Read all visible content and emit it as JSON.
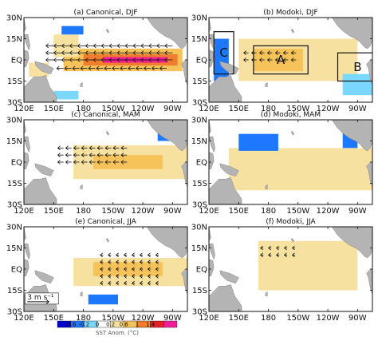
{
  "chart_data": {
    "type": "heatmap",
    "x_ticks": [
      "120E",
      "150E",
      "180",
      "150W",
      "120W",
      "90W"
    ],
    "y_ticks": [
      "30N",
      "15N",
      "EQ",
      "15S",
      "30S"
    ],
    "panels": [
      {
        "title": "(a) Canonical, DJF",
        "sst_patches": [
          {
            "lon": [
              160,
              280
            ],
            "lat": [
              -8,
              8
            ],
            "anom": 0.6
          },
          {
            "lon": [
              180,
              275
            ],
            "lat": [
              -4,
              4
            ],
            "anom": 1.0
          },
          {
            "lon": [
              200,
              265
            ],
            "lat": [
              -2,
              2
            ],
            "anom": 1.4
          },
          {
            "lon": [
              150,
              175
            ],
            "lat": [
              2,
              18
            ],
            "anom": 0.4
          },
          {
            "lon": [
              125,
              145
            ],
            "lat": [
              -12,
              -2
            ],
            "anom": 0.2
          },
          {
            "lon": [
              158,
              180
            ],
            "lat": [
              18,
              24
            ],
            "anom": -0.6
          },
          {
            "lon": [
              265,
              280
            ],
            "lat": [
              18,
              24
            ],
            "anom": -0.6
          },
          {
            "lon": [
              150,
              175
            ],
            "lat": [
              -28,
              -22
            ],
            "anom": -0.2
          }
        ],
        "winds": [
          {
            "lon": [
              150,
              270
            ],
            "lat": [
              0,
              10
            ],
            "u": 4.0,
            "v": 0.0
          },
          {
            "lon": [
              160,
              270
            ],
            "lat": [
              -6,
              -6
            ],
            "u": 3.5,
            "v": 0.0
          }
        ]
      },
      {
        "title": "(b) Modoki, DJF",
        "sst_patches": [
          {
            "lon": [
              150,
              270
            ],
            "lat": [
              -15,
              15
            ],
            "anom": 0.4
          },
          {
            "lon": [
              165,
              215
            ],
            "lat": [
              -8,
              8
            ],
            "anom": 0.6
          },
          {
            "lon": [
              125,
              140
            ],
            "lat": [
              -15,
              15
            ],
            "anom": -0.6
          },
          {
            "lon": [
              255,
              285
            ],
            "lat": [
              -25,
              -10
            ],
            "anom": -0.2
          }
        ],
        "winds": [
          {
            "lon": [
              160,
              210
            ],
            "lat": [
              0,
              5
            ],
            "u": 2.5,
            "v": 0.0
          }
        ],
        "boxes": [
          {
            "label": "A",
            "lon": [
              165,
              220
            ],
            "lat": [
              -10,
              10
            ]
          },
          {
            "label": "B",
            "lon": [
              250,
              290
            ],
            "lat": [
              -15,
              5
            ]
          },
          {
            "label": "C",
            "lon": [
              125,
              145
            ],
            "lat": [
              -10,
              20
            ]
          }
        ]
      },
      {
        "title": "(c) Canonical, MAM",
        "sst_patches": [
          {
            "lon": [
              170,
              285
            ],
            "lat": [
              -12,
              12
            ],
            "anom": 0.4
          },
          {
            "lon": [
              190,
              260
            ],
            "lat": [
              -5,
              5
            ],
            "anom": 0.6
          },
          {
            "lon": [
              255,
              270
            ],
            "lat": [
              15,
              25
            ],
            "anom": -0.6
          }
        ],
        "winds": [
          {
            "lon": [
              160,
              230
            ],
            "lat": [
              0,
              10
            ],
            "u": 3.0,
            "v": 0.0
          }
        ]
      },
      {
        "title": "(d) Modoki, MAM",
        "sst_patches": [
          {
            "lon": [
              140,
              290
            ],
            "lat": [
              -20,
              10
            ],
            "anom": 0.4
          },
          {
            "lon": [
              150,
              190
            ],
            "lat": [
              8,
              20
            ],
            "anom": -0.6
          },
          {
            "lon": [
              255,
              270
            ],
            "lat": [
              10,
              22
            ],
            "anom": -0.6
          }
        ],
        "winds": []
      },
      {
        "title": "(e) Canonical, JJA",
        "sst_patches": [
          {
            "lon": [
              170,
              285
            ],
            "lat": [
              -12,
              8
            ],
            "anom": 0.4
          },
          {
            "lon": [
              190,
              260
            ],
            "lat": [
              -5,
              5
            ],
            "anom": 0.6
          },
          {
            "lon": [
              185,
              215
            ],
            "lat": [
              -25,
              -18
            ],
            "anom": -0.6
          }
        ],
        "winds": [
          {
            "lon": [
              200,
              260
            ],
            "lat": [
              -10,
              10
            ],
            "u": 1.5,
            "v": 0.0
          }
        ]
      },
      {
        "title": "(f) Modoki, JJA",
        "sst_patches": [
          {
            "lon": [
              170,
              270
            ],
            "lat": [
              -15,
              20
            ],
            "anom": 0.2
          }
        ],
        "winds": [
          {
            "lon": [
              175,
              210
            ],
            "lat": [
              10,
              15
            ],
            "u": 1.5,
            "v": 0.0
          }
        ]
      }
    ],
    "reference_vector": {
      "label": "3 m s⁻¹",
      "value": 3
    },
    "colorbar": {
      "title": "SST Anom. (°C)",
      "ticks": [
        -0.6,
        -0.2,
        0,
        0.2,
        0.6,
        1,
        1.4
      ],
      "colors": [
        "#0000c8",
        "#1e78ff",
        "#7ad7ff",
        "#ffffff",
        "#f7e1a0",
        "#f5c35a",
        "#f07d2d",
        "#e61e28",
        "#f01e96"
      ]
    },
    "land_color": "#b4b4b4"
  }
}
